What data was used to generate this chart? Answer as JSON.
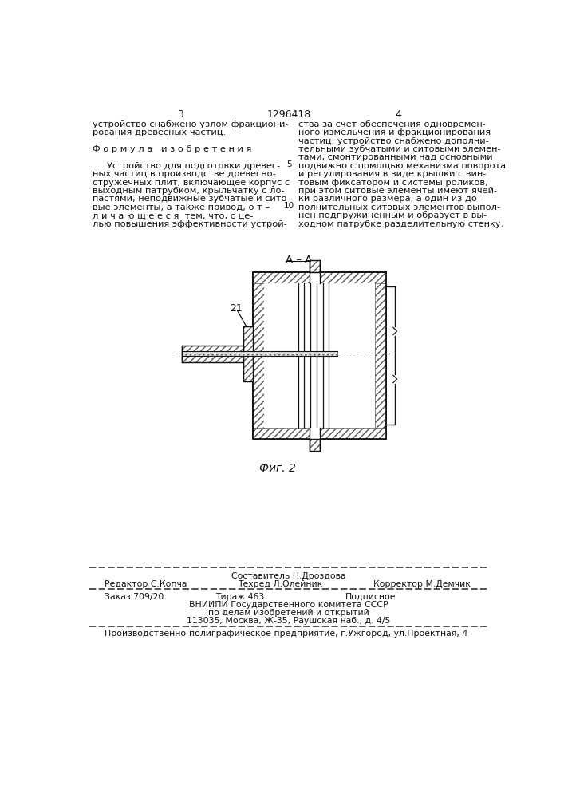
{
  "bg_color": "#ffffff",
  "page_number_left": "3",
  "page_number_center": "1296418",
  "page_number_right": "4",
  "col_left_lines": [
    "устройство снабжено узлом фракциони-",
    "рования древесных частиц.",
    "",
    "Ф о р м у л а   и з о б р е т е н и я",
    "",
    "     Устройство для подготовки древес-",
    "ных частиц в производстве древесно-",
    "стружечных плит, включающее корпус с",
    "выходным патрубком, крыльчатку с ло-",
    "пастями, неподвижные зубчатые и сито-",
    "вые элементы, а также привод, о т –",
    "л и ч а ю щ е е с я  тем, что, с це-",
    "лью повышения эффективности устрой-"
  ],
  "col_right_lines": [
    "ства за счет обеспечения одновремен-",
    "ного измельчения и фракционирования",
    "частиц, устройство снабжено дополни-",
    "тельными зубчатыми и ситовыми элемен-",
    "тами, смонтированными над основными",
    "подвижно с помощью механизма поворота",
    "и регулирования в виде крышки с вин-",
    "товым фиксатором и системы роликов,",
    "при этом ситовые элементы имеют ячей-",
    "ки различного размера, а один из до-",
    "полнительных ситовых элементов выпол-",
    "нен подпружиненным и образует в вы-",
    "ходном патрубке разделительную стенку."
  ],
  "line_number_5": "5",
  "line_number_10": "10",
  "fig_label": "А – А",
  "fig_number": "Фиг. 2",
  "part_label": "21",
  "footer_line0_center": "Составитель Н.Дроздова",
  "footer_line1_left": "Редактор С.Копча",
  "footer_line1_center": "Техред Л.Олейник",
  "footer_line1_right": "Корректор М.Демчик",
  "footer_line2_left": "Заказ 709/20",
  "footer_line2_center": "Тираж 463",
  "footer_line2_right": "Подписное",
  "footer_line3": "ВНИИПИ Государственного комитета СССР",
  "footer_line4": "по делам изобретений и открытий",
  "footer_line5": "113035, Москва, Ж-35, Раушская наб., д. 4/5",
  "footer_last": "Производственно-полиграфическое предприятие, г.Ужгород, ул.Проектная, 4"
}
